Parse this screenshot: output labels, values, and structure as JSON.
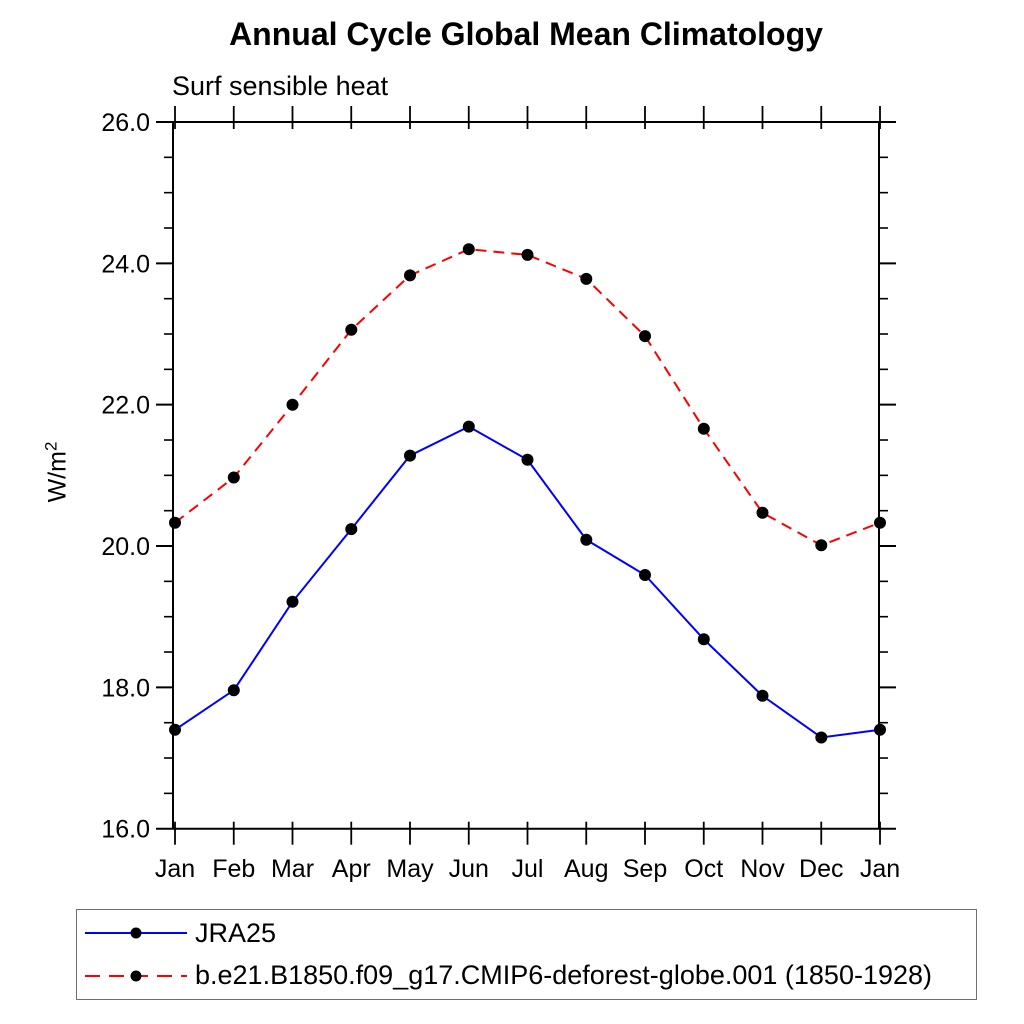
{
  "header": {
    "title": "Annual Cycle Global Mean Climatology",
    "subtitle": "Surf sensible heat"
  },
  "y_axis": {
    "label_base": "W/m",
    "label_exponent": "2",
    "major_ticks": [
      26,
      24,
      22,
      20,
      18,
      16
    ],
    "tick_labels": [
      "26.0",
      "24.0",
      "22.0",
      "20.0",
      "18.0",
      "16.0"
    ],
    "minor_step": 0.5,
    "range": [
      16.0,
      26.0
    ]
  },
  "x_axis": {
    "categories": [
      "Jan",
      "Feb",
      "Mar",
      "Apr",
      "May",
      "Jun",
      "Jul",
      "Aug",
      "Sep",
      "Oct",
      "Nov",
      "Dec",
      "Jan"
    ]
  },
  "colors": {
    "series1": "#0000ff",
    "series2": "#ff0000",
    "marker": "#000000",
    "axis": "#000000",
    "legend_border": "#6e6e6e"
  },
  "chart_data": {
    "type": "line",
    "title": "Annual Cycle Global Mean Climatology",
    "subtitle": "Surf sensible heat",
    "xlabel": "",
    "ylabel": "W/m^2",
    "categories": [
      "Jan",
      "Feb",
      "Mar",
      "Apr",
      "May",
      "Jun",
      "Jul",
      "Aug",
      "Sep",
      "Oct",
      "Nov",
      "Dec",
      "Jan"
    ],
    "ylim": [
      16.0,
      26.0
    ],
    "y_major_tick_step": 2.0,
    "y_minor_tick_step": 0.5,
    "grid": false,
    "legend_position": "bottom",
    "series": [
      {
        "name": "JRA25",
        "color": "#0000ff",
        "line_style": "solid",
        "marker": "filled-circle",
        "marker_color": "#000000",
        "values": [
          17.4,
          17.96,
          19.21,
          20.24,
          21.28,
          21.69,
          21.22,
          20.09,
          19.59,
          18.68,
          17.88,
          17.29,
          17.4
        ]
      },
      {
        "name": "b.e21.B1850.f09_g17.CMIP6-deforest-globe.001 (1850-1928)",
        "color": "#ff0000",
        "line_style": "dashed",
        "marker": "filled-circle",
        "marker_color": "#000000",
        "values": [
          20.33,
          20.97,
          22.0,
          23.06,
          23.83,
          24.2,
          24.12,
          23.78,
          22.97,
          21.66,
          20.47,
          20.01,
          20.33
        ]
      }
    ]
  }
}
